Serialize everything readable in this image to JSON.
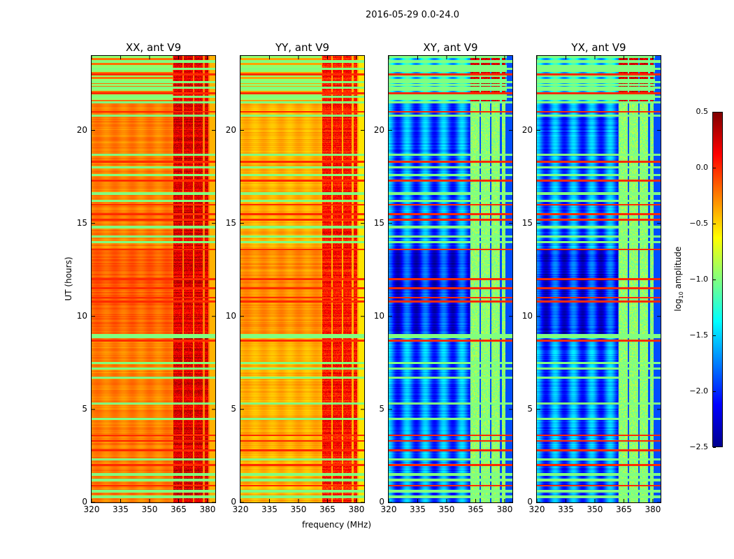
{
  "figure": {
    "suptitle": "2016-05-29 0.0-24.0"
  },
  "chart_data": {
    "type": "heatmap",
    "title": "2016-05-29 0.0-24.0",
    "xlabel": "frequency (MHz)",
    "ylabel": "UT (hours)",
    "xlim": [
      320,
      384
    ],
    "ylim": [
      0,
      24
    ],
    "xticks": [
      "320",
      "335",
      "350",
      "365",
      "380"
    ],
    "xtick_values": [
      320,
      335,
      350,
      365,
      380
    ],
    "yticks": [
      "0",
      "5",
      "10",
      "15",
      "20"
    ],
    "ytick_values": [
      0,
      5,
      10,
      15,
      20
    ],
    "colormap": "jet",
    "colorbar": {
      "label_main": "log",
      "label_sub": "10",
      "label_rest": " amplitude",
      "range": [
        -2.5,
        0.5
      ],
      "ticks": [
        "0.5",
        "0.0",
        "−0.5",
        "−1.0",
        "−1.5",
        "−2.0",
        "−2.5"
      ],
      "tick_values": [
        0.5,
        0.0,
        -0.5,
        -1.0,
        -1.5,
        -2.0,
        -2.5
      ]
    },
    "rfi_band_mhz": [
      362,
      381
    ],
    "flagged_rows_hours": [
      0.3,
      0.6,
      1.2,
      1.5,
      2.3,
      4.5,
      5.3,
      6.7,
      7.2,
      7.5,
      8.9,
      9.0,
      14.0,
      14.3,
      14.8,
      16.2,
      16.6,
      17.6,
      18.0,
      18.7,
      20.8,
      21.5,
      21.8,
      22.3,
      22.6,
      23.3,
      23.7
    ],
    "red_rows_hours": [
      0.9,
      2.0,
      2.8,
      3.3,
      3.6,
      8.7,
      10.8,
      11.0,
      11.5,
      12.0,
      13.6,
      15.2,
      15.5,
      16.0,
      17.3,
      18.3,
      21.0,
      22.0,
      23.0
    ],
    "panels": [
      {
        "title": "XX, ant V9",
        "base_level": -0.25,
        "rfi_level": 0.1
      },
      {
        "title": "YY, ant V9",
        "base_level": -0.4,
        "rfi_level": -0.05
      },
      {
        "title": "XY, ant V9",
        "base_level": -1.8,
        "rfi_level": -0.95
      },
      {
        "title": "YX, ant V9",
        "base_level": -1.8,
        "rfi_level": -0.95
      }
    ]
  }
}
